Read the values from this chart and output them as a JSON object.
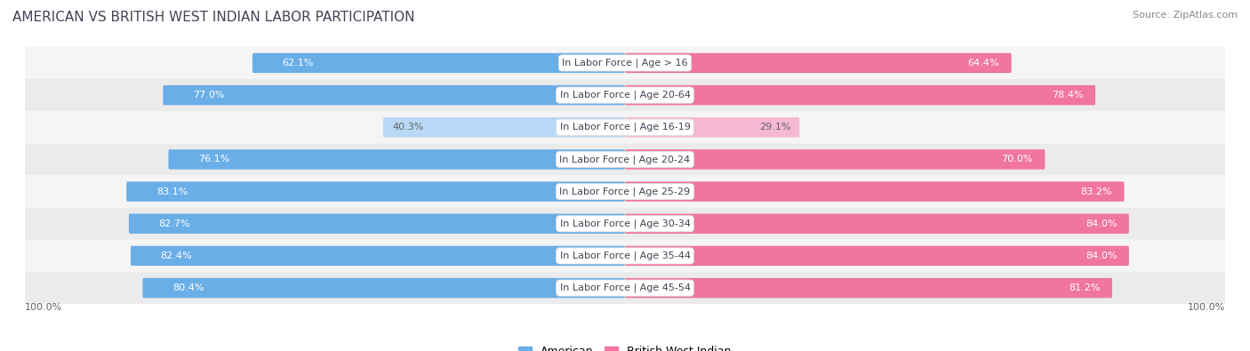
{
  "title": "AMERICAN VS BRITISH WEST INDIAN LABOR PARTICIPATION",
  "source": "Source: ZipAtlas.com",
  "categories": [
    "In Labor Force | Age > 16",
    "In Labor Force | Age 20-64",
    "In Labor Force | Age 16-19",
    "In Labor Force | Age 20-24",
    "In Labor Force | Age 25-29",
    "In Labor Force | Age 30-34",
    "In Labor Force | Age 35-44",
    "In Labor Force | Age 45-54"
  ],
  "american_values": [
    62.1,
    77.0,
    40.3,
    76.1,
    83.1,
    82.7,
    82.4,
    80.4
  ],
  "bwi_values": [
    64.4,
    78.4,
    29.1,
    70.0,
    83.2,
    84.0,
    84.0,
    81.2
  ],
  "american_color_dark": "#6aaee8",
  "american_color_light": "#b8d8f5",
  "bwi_color_dark": "#f075a0",
  "bwi_color_light": "#f5b8d0",
  "bg_color": "#ffffff",
  "row_bg_light": "#f5f5f5",
  "row_bg_dark": "#ebebeb",
  "max_value": 100.0,
  "bar_height": 0.62,
  "legend_american": "American",
  "legend_bwi": "British West Indian",
  "bottom_label": "100.0%",
  "title_color": "#444455",
  "source_color": "#888888",
  "label_text_color": "#444455",
  "value_text_color_dark": "#ffffff",
  "value_text_color_light": "#666666"
}
